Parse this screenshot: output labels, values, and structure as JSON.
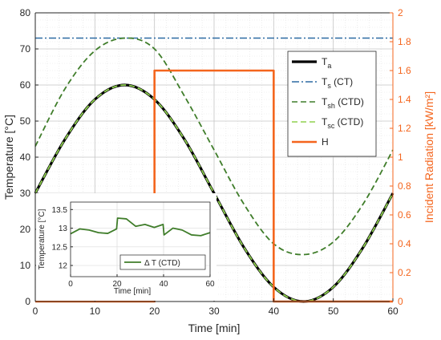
{
  "chart_data": [
    {
      "type": "line",
      "xlabel": "Time [min]",
      "ylabel": "Temperature [°C]",
      "ylabel_right": "Incident Radiation [kW/m²]",
      "xlim": [
        0,
        60
      ],
      "ylim": [
        0,
        80
      ],
      "ylim_right": [
        0,
        2
      ],
      "xticks": [
        "0",
        "10",
        "20",
        "30",
        "40",
        "50",
        "60"
      ],
      "yticks": [
        "0",
        "10",
        "20",
        "30",
        "40",
        "50",
        "60",
        "70",
        "80"
      ],
      "yticks_right": [
        "0",
        "0.2",
        "0.4",
        "0.6",
        "0.8",
        "1",
        "1.2",
        "1.4",
        "1.6",
        "1.8",
        "2"
      ],
      "grid": true,
      "legend_position": "right",
      "colors": {
        "left_axis": "#262626",
        "right_axis": "#f4651d"
      },
      "series": [
        {
          "key": "Ta",
          "name": "Ta",
          "name_main": "T",
          "name_sub": "a",
          "name_tail": "",
          "color": "#000000",
          "dash": "solid",
          "axis": "left",
          "x": [
            0,
            5,
            10,
            15,
            20,
            25,
            30,
            35,
            40,
            45,
            50,
            55,
            60
          ],
          "y": [
            30.0,
            45.0,
            56.0,
            60.0,
            56.0,
            45.0,
            30.0,
            15.0,
            4.0,
            0.0,
            4.0,
            15.0,
            30.0
          ]
        },
        {
          "key": "Ts",
          "name": "Ts (CT)",
          "name_main": "T",
          "name_sub": "s",
          "name_tail": " (CT)",
          "color": "#2d6aa3",
          "dash": "dashdot",
          "axis": "left",
          "x": [
            0,
            60
          ],
          "y": [
            73.0,
            73.0
          ]
        },
        {
          "key": "Tsh",
          "name": "Tsh (CTD)",
          "name_main": "T",
          "name_sub": "sh",
          "name_tail": " (CTD)",
          "color": "#3f7d2a",
          "dash": "dashed",
          "axis": "left",
          "x": [
            0,
            5,
            10,
            15,
            20,
            25,
            30,
            35,
            40,
            45,
            50,
            55,
            60
          ],
          "y": [
            43.0,
            59.0,
            69.5,
            73.0,
            70.0,
            57.0,
            42.0,
            27.0,
            16.0,
            13.0,
            16.5,
            27.0,
            42.0
          ]
        },
        {
          "key": "Tsc",
          "name": "Tsc (CTD)",
          "name_main": "T",
          "name_sub": "sc",
          "name_tail": " (CTD)",
          "color": "#8fd14f",
          "dash": "dashed",
          "axis": "left",
          "x": [
            0,
            5,
            10,
            15,
            20,
            25,
            30,
            35,
            40,
            45,
            50,
            55,
            60
          ],
          "y": [
            30.0,
            45.0,
            56.0,
            60.0,
            56.0,
            45.0,
            30.0,
            15.0,
            4.0,
            0.0,
            4.0,
            15.0,
            30.0
          ]
        },
        {
          "key": "H",
          "name": "H",
          "name_main": "H",
          "name_sub": "",
          "name_tail": "",
          "color": "#f4651d",
          "dash": "solid",
          "axis": "right",
          "x": [
            0,
            20,
            20,
            40,
            40,
            60
          ],
          "y": [
            0,
            0,
            1.6,
            1.6,
            0,
            0
          ]
        }
      ]
    },
    {
      "type": "line",
      "xlabel": "Time [min]",
      "ylabel": "Temperature [°C]",
      "xlim": [
        0,
        60
      ],
      "ylim": [
        11.7,
        13.7
      ],
      "xticks": [
        "0",
        "20",
        "40",
        "60"
      ],
      "yticks": [
        "12",
        "12.5",
        "13",
        "13.5"
      ],
      "grid": true,
      "legend_position": "bottom-right",
      "series": [
        {
          "key": "dT",
          "name": "Δ T (CTD)",
          "color": "#3f7d2a",
          "dash": "solid",
          "x": [
            0,
            4,
            8,
            12,
            16,
            19.8,
            20.2,
            24,
            28,
            32,
            36,
            39.8,
            40.2,
            44,
            48,
            52,
            56,
            60
          ],
          "y": [
            12.85,
            12.98,
            12.95,
            12.88,
            12.86,
            12.98,
            13.27,
            13.25,
            13.05,
            13.1,
            13.02,
            13.1,
            12.82,
            13.0,
            12.95,
            12.82,
            12.8,
            12.88
          ]
        }
      ]
    }
  ]
}
